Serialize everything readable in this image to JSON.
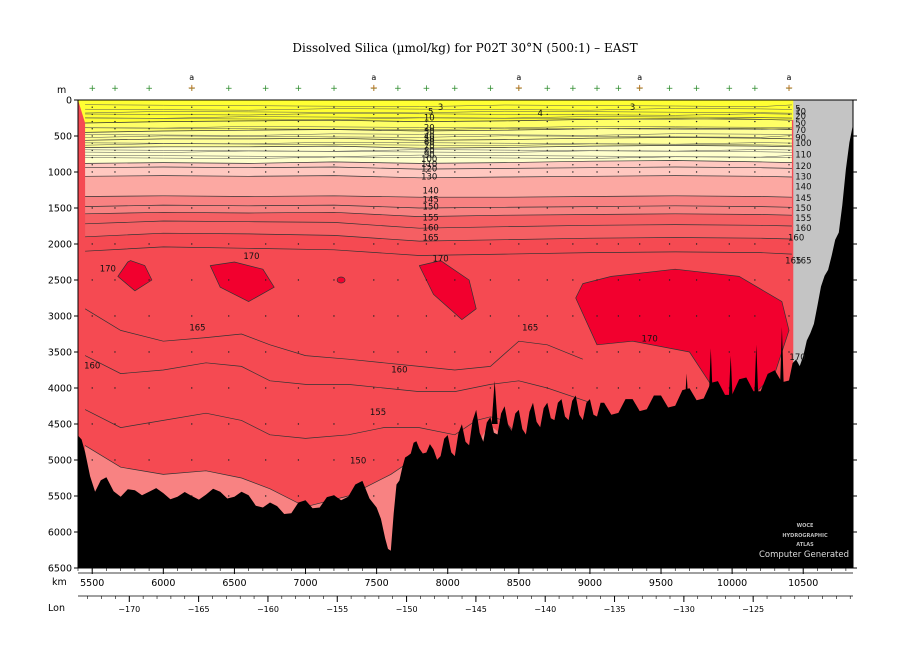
{
  "chart_data": {
    "type": "heatmap",
    "title": "Dissolved Silica (µmol/kg) for P02T 30°N (500:1) – EAST",
    "xlabel": "km",
    "ylabel": "m",
    "x2label": "Lon",
    "xlim": [
      5400,
      10850
    ],
    "ylim": [
      0,
      6500
    ],
    "lonlim": [
      -173.7,
      -117.8
    ],
    "y_ticks": [
      0,
      500,
      1000,
      1500,
      2000,
      2500,
      3000,
      3500,
      4000,
      4500,
      5000,
      5500,
      6000,
      6500
    ],
    "y_tick_labels": [
      "0",
      "500",
      "1000",
      "1500",
      "2000",
      "2500",
      "3000",
      "3500",
      "4000",
      "4500",
      "5000",
      "5500",
      "6000",
      "6500"
    ],
    "x_ticks": [
      5500,
      6000,
      6500,
      7000,
      7500,
      8000,
      8500,
      9000,
      9500,
      10000,
      10500
    ],
    "x_tick_labels": [
      "5500",
      "6000",
      "6500",
      "7000",
      "7500",
      "8000",
      "8500",
      "9000",
      "9500",
      "10000",
      "10500"
    ],
    "lon_ticks": [
      -170,
      -165,
      -160,
      -155,
      -150,
      -145,
      -140,
      -135,
      -130,
      -125
    ],
    "lon_tick_labels": [
      "−170",
      "−165",
      "−160",
      "−155",
      "−150",
      "−145",
      "−140",
      "−135",
      "−130",
      "−125"
    ],
    "station_markers": [
      {
        "km": 6200,
        "label": "a"
      },
      {
        "km": 7480,
        "label": "a"
      },
      {
        "km": 8500,
        "label": "a"
      },
      {
        "km": 9350,
        "label": "a"
      },
      {
        "km": 10400,
        "label": "a"
      }
    ],
    "station_km": [
      5500,
      5660,
      5900,
      6200,
      6460,
      6720,
      6950,
      7200,
      7480,
      7650,
      7850,
      8050,
      8300,
      8500,
      8700,
      8880,
      9050,
      9200,
      9350,
      9560,
      9750,
      9980,
      10160,
      10400
    ],
    "contour_levels": [
      3,
      4,
      5,
      10,
      20,
      30,
      40,
      50,
      60,
      70,
      80,
      90,
      100,
      110,
      120,
      130,
      140,
      145,
      150,
      155,
      160,
      165,
      170
    ],
    "shading": [
      {
        "min": 0,
        "max": 10,
        "color": "#ffff33"
      },
      {
        "min": 10,
        "max": 50,
        "color": "#ffff66"
      },
      {
        "min": 50,
        "max": 90,
        "color": "#ffff99"
      },
      {
        "min": 90,
        "max": 110,
        "color": "#ffffcc"
      },
      {
        "min": 110,
        "max": 130,
        "color": "#ffc8c0"
      },
      {
        "min": 130,
        "max": 140,
        "color": "#fca8a2"
      },
      {
        "min": 140,
        "max": 150,
        "color": "#f88282"
      },
      {
        "min": 150,
        "max": 160,
        "color": "#f55f63"
      },
      {
        "min": 160,
        "max": 170,
        "color": "#f54a52"
      },
      {
        "min": 170,
        "max": 180,
        "color": "#f2002e"
      }
    ],
    "isolines": [
      {
        "value": 20,
        "km": [
          5450,
          6000,
          6600,
          7200,
          7800,
          8400,
          9000,
          9600,
          10200,
          10420
        ],
        "depth": [
          320,
          300,
          290,
          280,
          300,
          290,
          270,
          260,
          270,
          280
        ]
      },
      {
        "value": 50,
        "km": [
          5450,
          6000,
          6600,
          7200,
          7800,
          8400,
          9000,
          9600,
          10200,
          10420
        ],
        "depth": [
          450,
          430,
          420,
          410,
          430,
          420,
          400,
          390,
          400,
          410
        ]
      },
      {
        "value": 70,
        "km": [
          5450,
          6000,
          6600,
          7200,
          7800,
          8400,
          9000,
          9600,
          10200,
          10420
        ],
        "depth": [
          560,
          540,
          540,
          530,
          560,
          550,
          530,
          520,
          530,
          540
        ]
      },
      {
        "value": 90,
        "km": [
          5450,
          6000,
          6600,
          7200,
          7800,
          8400,
          9000,
          9600,
          10200,
          10420
        ],
        "depth": [
          660,
          650,
          650,
          640,
          670,
          660,
          640,
          630,
          640,
          650
        ]
      },
      {
        "value": 110,
        "km": [
          5450,
          6000,
          6600,
          7200,
          7800,
          8400,
          9000,
          9600,
          10200,
          10420
        ],
        "depth": [
          880,
          870,
          880,
          860,
          880,
          870,
          850,
          840,
          860,
          870
        ]
      },
      {
        "value": 120,
        "km": [
          5450,
          6000,
          6600,
          7200,
          7800,
          8400,
          9000,
          9600,
          10200,
          10420
        ],
        "depth": [
          940,
          930,
          940,
          930,
          960,
          950,
          940,
          930,
          940,
          950
        ]
      },
      {
        "value": 130,
        "km": [
          5450,
          6000,
          6600,
          7200,
          7800,
          8400,
          9000,
          9600,
          10200,
          10420
        ],
        "depth": [
          1060,
          1050,
          1060,
          1050,
          1080,
          1070,
          1060,
          1050,
          1060,
          1070
        ]
      },
      {
        "value": 140,
        "km": [
          5450,
          6000,
          6600,
          7200,
          7800,
          8400,
          9000,
          9600,
          10200,
          10420
        ],
        "depth": [
          1340,
          1330,
          1340,
          1330,
          1350,
          1350,
          1340,
          1330,
          1340,
          1350
        ]
      },
      {
        "value": 145,
        "km": [
          5450,
          6000,
          6600,
          7200,
          7800,
          8400,
          9000,
          9600,
          10200,
          10420
        ],
        "depth": [
          1480,
          1460,
          1470,
          1460,
          1500,
          1490,
          1480,
          1470,
          1480,
          1490
        ]
      },
      {
        "value": 150,
        "km": [
          5450,
          6000,
          6600,
          7200,
          7800,
          8400,
          9000,
          9600,
          10200,
          10420
        ],
        "depth": [
          1580,
          1560,
          1570,
          1560,
          1620,
          1600,
          1590,
          1580,
          1590,
          1600
        ]
      },
      {
        "value": 155,
        "km": [
          5450,
          6000,
          6600,
          7200,
          7800,
          8400,
          9000,
          9600,
          10200,
          10420
        ],
        "depth": [
          1720,
          1680,
          1690,
          1700,
          1780,
          1760,
          1740,
          1730,
          1740,
          1750
        ]
      },
      {
        "value": 160,
        "km": [
          5450,
          6000,
          6600,
          7200,
          7800,
          8400,
          9000,
          9600,
          10200,
          10420
        ],
        "depth": [
          1900,
          1850,
          1860,
          1880,
          1960,
          1940,
          1920,
          1910,
          1920,
          1930
        ]
      },
      {
        "value": 165,
        "km": [
          5450,
          6000,
          6600,
          7200,
          7800,
          8400,
          9000,
          9600,
          10200,
          10420
        ],
        "depth": [
          2100,
          2040,
          2060,
          2080,
          2160,
          2140,
          2120,
          2110,
          2120,
          2140
        ]
      }
    ],
    "deep_isolines": [
      {
        "value": 165,
        "km": [
          5450,
          5700,
          6000,
          6300,
          6550,
          6750,
          7000,
          7300,
          7550,
          7800,
          8050,
          8300,
          8500,
          8700,
          8950
        ],
        "depth": [
          2900,
          3200,
          3350,
          3300,
          3250,
          3400,
          3550,
          3600,
          3650,
          3700,
          3750,
          3700,
          3350,
          3400,
          3600
        ]
      },
      {
        "value": 160,
        "km": [
          5450,
          5700,
          6000,
          6300,
          6550,
          6750,
          7000,
          7300,
          7550,
          7800,
          8050,
          8300,
          8500,
          8700,
          9000
        ],
        "depth": [
          3550,
          3800,
          3750,
          3650,
          3700,
          3900,
          3950,
          3950,
          4000,
          4050,
          4050,
          3950,
          3900,
          4000,
          4200
        ]
      },
      {
        "value": 155,
        "km": [
          5450,
          5700,
          6000,
          6300,
          6550,
          6750,
          7000,
          7300,
          7550,
          7800,
          8050,
          8200,
          8300,
          8400,
          8500
        ],
        "depth": [
          4300,
          4550,
          4450,
          4350,
          4450,
          4650,
          4700,
          4650,
          4550,
          4550,
          4650,
          4450,
          4400,
          4450,
          4700
        ]
      },
      {
        "value": 150,
        "km": [
          5450,
          5700,
          6000,
          6300,
          6550,
          6750,
          7000,
          7300,
          7600,
          7750
        ],
        "depth": [
          4800,
          5100,
          5200,
          5150,
          5250,
          5400,
          5650,
          5500,
          5200,
          5000
        ]
      }
    ],
    "max_patches": [
      {
        "value": 170,
        "km": [
          5750,
          5680,
          5800,
          5920,
          5870,
          5770
        ],
        "depth": [
          2250,
          2450,
          2650,
          2500,
          2300,
          2230
        ]
      },
      {
        "value": 170,
        "km": [
          6330,
          6400,
          6600,
          6780,
          6700,
          6500
        ],
        "depth": [
          2300,
          2600,
          2800,
          2600,
          2350,
          2250
        ]
      },
      {
        "value": 170,
        "km": [
          7800,
          7900,
          8100,
          8200,
          8150,
          7950
        ],
        "depth": [
          2300,
          2700,
          3050,
          2900,
          2500,
          2230
        ]
      },
      {
        "value": 170,
        "km": [
          8900,
          9050,
          9300,
          9700,
          10000,
          10300,
          10400,
          10350,
          10050,
          9600,
          9150,
          8950
        ],
        "depth": [
          2750,
          3400,
          3350,
          3500,
          4400,
          3800,
          3200,
          2800,
          2450,
          2350,
          2450,
          2550
        ]
      }
    ],
    "contour_labels": [
      {
        "text": "3",
        "km": 7950,
        "depth": 100
      },
      {
        "text": "3",
        "km": 9300,
        "depth": 100
      },
      {
        "text": "4",
        "km": 8650,
        "depth": 180
      },
      {
        "text": "5",
        "km": 7880,
        "depth": 160
      },
      {
        "text": "10",
        "km": 7870,
        "depth": 240
      },
      {
        "text": "20",
        "km": 7870,
        "depth": 380
      },
      {
        "text": "30",
        "km": 7870,
        "depth": 440
      },
      {
        "text": "40",
        "km": 7870,
        "depth": 500
      },
      {
        "text": "50",
        "km": 7870,
        "depth": 540
      },
      {
        "text": "60",
        "km": 7870,
        "depth": 580
      },
      {
        "text": "70",
        "km": 7870,
        "depth": 640
      },
      {
        "text": "80",
        "km": 7870,
        "depth": 700
      },
      {
        "text": "90",
        "km": 7870,
        "depth": 760
      },
      {
        "text": "100",
        "km": 7870,
        "depth": 820
      },
      {
        "text": "110",
        "km": 7870,
        "depth": 890
      },
      {
        "text": "120",
        "km": 7870,
        "depth": 950
      },
      {
        "text": "130",
        "km": 7870,
        "depth": 1060
      },
      {
        "text": "140",
        "km": 7880,
        "depth": 1260
      },
      {
        "text": "145",
        "km": 7880,
        "depth": 1380
      },
      {
        "text": "150",
        "km": 7880,
        "depth": 1480
      },
      {
        "text": "155",
        "km": 7880,
        "depth": 1630
      },
      {
        "text": "160",
        "km": 7880,
        "depth": 1770
      },
      {
        "text": "165",
        "km": 7880,
        "depth": 1910
      },
      {
        "text": "170",
        "km": 6620,
        "depth": 2170
      },
      {
        "text": "170",
        "km": 7950,
        "depth": 2200
      },
      {
        "text": "170",
        "km": 5610,
        "depth": 2340
      },
      {
        "text": "165",
        "km": 6240,
        "depth": 3160
      },
      {
        "text": "165",
        "km": 8580,
        "depth": 3160
      },
      {
        "text": "170",
        "km": 9420,
        "depth": 3310
      },
      {
        "text": "170",
        "km": 10460,
        "depth": 3570
      },
      {
        "text": "160",
        "km": 5500,
        "depth": 3690
      },
      {
        "text": "160",
        "km": 7660,
        "depth": 3740
      },
      {
        "text": "155",
        "km": 7510,
        "depth": 4330
      },
      {
        "text": "150",
        "km": 7370,
        "depth": 5010
      },
      {
        "text": "165",
        "km": 10430,
        "depth": 2230
      },
      {
        "text": "160",
        "km": 10450,
        "depth": 1910
      }
    ],
    "right_edge_labels": [
      "5",
      "10",
      "20",
      "50",
      "70",
      "90",
      "100",
      "110",
      "120",
      "130",
      "140",
      "145",
      "150",
      "155",
      "160",
      "165"
    ],
    "seafloor": {
      "km": [
        5400,
        5450,
        5520,
        5600,
        5700,
        5800,
        5900,
        6000,
        6100,
        6200,
        6300,
        6400,
        6500,
        6600,
        6700,
        6800,
        6900,
        7000,
        7100,
        7200,
        7300,
        7400,
        7500,
        7560,
        7600,
        7640,
        7680,
        7720,
        7760,
        7800,
        7850,
        7900,
        7950,
        8000,
        8050,
        8100,
        8150,
        8200,
        8250,
        8300,
        8350,
        8400,
        8450,
        8500,
        8550,
        8600,
        8650,
        8700,
        8750,
        8800,
        8850,
        8900,
        8950,
        9000,
        9050,
        9100,
        9200,
        9300,
        9400,
        9500,
        9600,
        9700,
        9800,
        9900,
        10000,
        10100,
        10200,
        10300,
        10400,
        10450,
        10500,
        10550,
        10600,
        10650,
        10700,
        10750,
        10800,
        10850
      ],
      "depth": [
        4600,
        4950,
        5380,
        5300,
        5450,
        5480,
        5380,
        5520,
        5450,
        5560,
        5420,
        5500,
        5450,
        5550,
        5600,
        5700,
        5680,
        5620,
        5600,
        5550,
        5450,
        5350,
        5600,
        6150,
        6200,
        5400,
        5050,
        5000,
        4700,
        4900,
        4800,
        4950,
        4850,
        4750,
        4850,
        4600,
        4700,
        4400,
        4650,
        4500,
        4550,
        4350,
        4500,
        4400,
        4550,
        4300,
        4450,
        4300,
        4350,
        4250,
        4350,
        4200,
        4350,
        4250,
        4300,
        4300,
        4250,
        4250,
        4200,
        4200,
        4150,
        4100,
        4050,
        4000,
        4000,
        3950,
        3950,
        3850,
        3800,
        3700,
        3500,
        3300,
        2800,
        2500,
        2100,
        1900,
        900,
        400
      ]
    },
    "annotations": [
      "Computer Generated",
      "WOCE",
      "HYDROGRAPHIC",
      "ATLAS"
    ]
  }
}
